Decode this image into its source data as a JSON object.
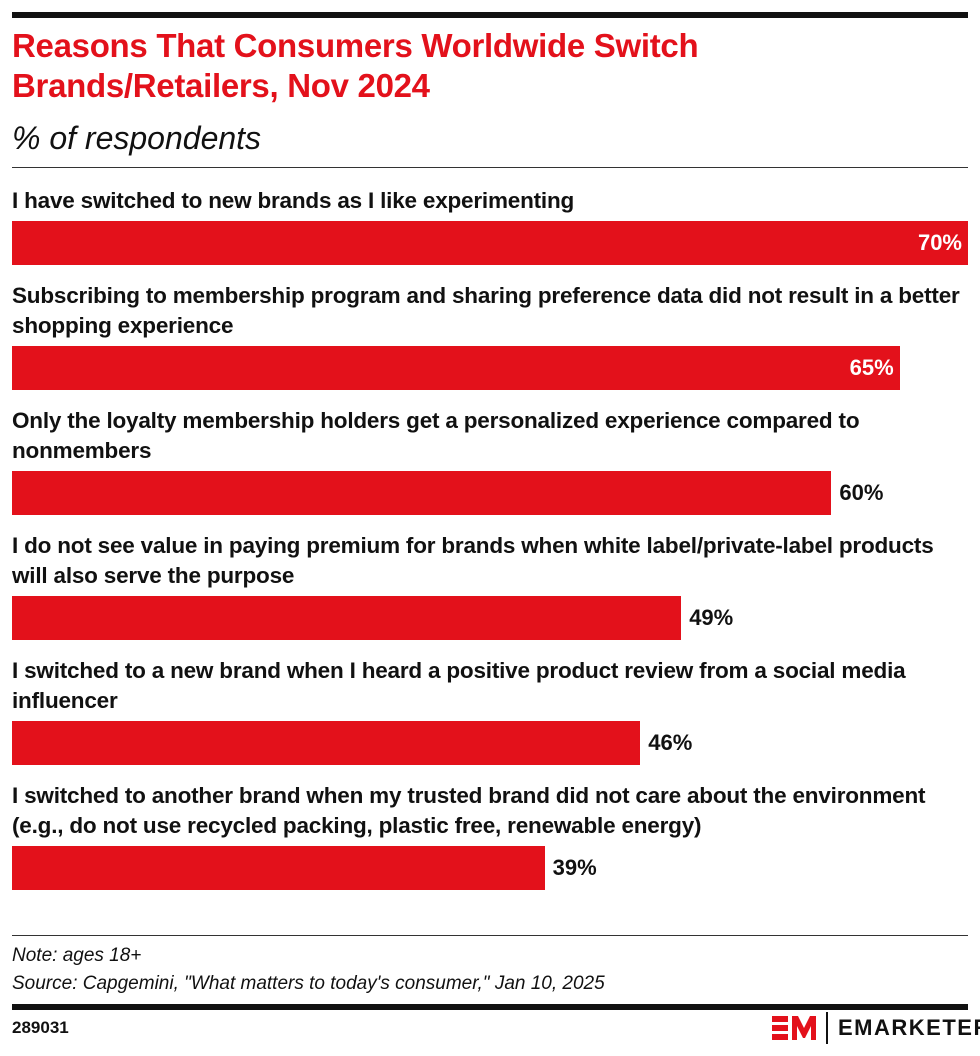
{
  "title": "Reasons That Consumers Worldwide Switch Brands/Retailers, Nov 2024",
  "subtitle": "% of respondents",
  "chart_data": {
    "type": "bar",
    "orientation": "horizontal",
    "categories": [
      "I have switched to new brands as I like experimenting",
      "Subscribing to membership program and sharing preference data did not result in a better shopping experience",
      "Only the loyalty membership holders get a personalized experience compared to nonmembers",
      "I do not see value in paying premium for brands when white label/private-label products will also serve the purpose",
      "I switched to a new brand when I heard a positive product review from a social media influencer",
      "I switched to another brand when my trusted brand did not care about the environment (e.g., do not use recycled packing, plastic free, renewable energy)"
    ],
    "values": [
      70,
      65,
      60,
      49,
      46,
      39
    ],
    "labels": [
      "70%",
      "65%",
      "60%",
      "49%",
      "46%",
      "39%"
    ],
    "xlim": [
      0,
      70
    ],
    "bar_color": "#e3111b",
    "grid": false
  },
  "note": "Note: ages 18+",
  "source": "Source: Capgemini, \"What matters to today's consumer,\" Jan 10, 2025",
  "chart_id": "289031",
  "brand": "EMARKETER",
  "colors": {
    "accent": "#e3111b",
    "text": "#111111"
  }
}
